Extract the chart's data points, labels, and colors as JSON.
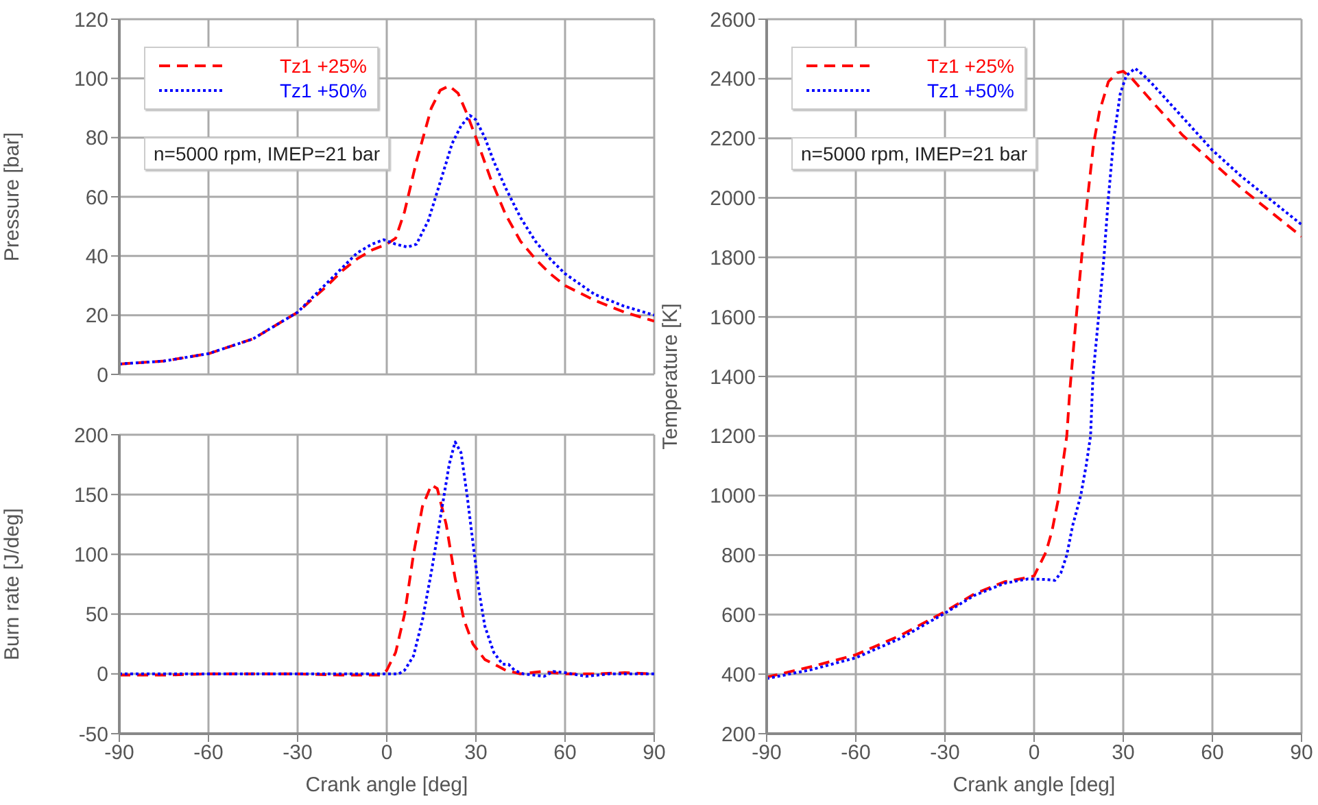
{
  "chart_data": [
    {
      "type": "line",
      "ylabel": "Pressure [bar]",
      "xlim": [
        -90,
        90
      ],
      "xticks": [
        -90,
        -60,
        -30,
        0,
        30,
        60,
        90
      ],
      "ylim": [
        0,
        120
      ],
      "yticks": [
        0,
        20,
        40,
        60,
        80,
        100,
        120
      ],
      "tick_labels": "y",
      "grid": true,
      "legend": "top left",
      "marker": "none",
      "annotations": [
        "n=5000 rpm, IMEP=21 bar"
      ],
      "series": [
        {
          "name": "Tz1 +25%",
          "color": "#ff0000",
          "line_style": "dashed",
          "x": [
            -90,
            -75,
            -60,
            -45,
            -30,
            -20,
            -15,
            -10,
            -5,
            0,
            3,
            6,
            10,
            15,
            18,
            21,
            24,
            27,
            30,
            35,
            40,
            45,
            50,
            55,
            60,
            70,
            80,
            90
          ],
          "values": [
            3.5,
            4.5,
            7,
            12,
            21,
            30,
            35,
            39,
            42,
            44,
            46,
            55,
            72,
            90,
            96,
            97.5,
            95,
            88,
            80,
            66,
            54,
            45,
            39,
            34,
            30,
            25,
            21,
            18
          ]
        },
        {
          "name": "Tz1 +50%",
          "color": "#0000ff",
          "line_style": "dotted",
          "x": [
            -90,
            -75,
            -60,
            -45,
            -30,
            -20,
            -15,
            -10,
            -5,
            -1,
            3,
            7,
            10,
            14,
            18,
            22,
            25,
            28,
            30,
            33,
            36,
            40,
            45,
            50,
            55,
            60,
            70,
            80,
            90
          ],
          "values": [
            3.5,
            4.5,
            7,
            12,
            21,
            31,
            36,
            41,
            44,
            45.5,
            44,
            43,
            44,
            52,
            65,
            78,
            84,
            87.5,
            86,
            80,
            72,
            63,
            53,
            45,
            39,
            34,
            27,
            23,
            20
          ]
        }
      ]
    },
    {
      "type": "line",
      "xlabel": "Crank angle [deg]",
      "ylabel": "Burn rate [J/deg]",
      "xlim": [
        -90,
        90
      ],
      "xticks": [
        -90,
        -60,
        -30,
        0,
        30,
        60,
        90
      ],
      "ylim": [
        -50,
        200
      ],
      "yticks": [
        -50,
        0,
        50,
        100,
        150,
        200
      ],
      "grid": true,
      "marker": "none",
      "series": [
        {
          "color": "#ff0000",
          "line_style": "dashed",
          "x": [
            -90,
            -75,
            -60,
            -45,
            -30,
            -15,
            -2,
            0,
            3,
            6,
            9,
            12,
            15,
            17,
            20,
            23,
            26,
            29,
            33,
            37,
            40,
            45,
            52,
            60,
            70,
            80,
            90
          ],
          "values": [
            -1,
            -1,
            0,
            0,
            0,
            -1,
            -1,
            3,
            18,
            50,
            100,
            140,
            158,
            155,
            125,
            80,
            45,
            25,
            12,
            7,
            3,
            0,
            2,
            0,
            0,
            1,
            0
          ]
        },
        {
          "color": "#0000ff",
          "line_style": "dotted",
          "x": [
            -90,
            -75,
            -60,
            -45,
            -30,
            -15,
            0,
            4,
            6,
            9,
            12,
            15,
            18,
            21,
            23,
            25,
            27,
            29,
            31,
            33,
            36,
            39,
            41,
            43,
            46,
            53,
            56,
            60,
            67,
            75,
            90
          ],
          "values": [
            0,
            0,
            0,
            0,
            0,
            0,
            0,
            0,
            3,
            15,
            45,
            85,
            130,
            175,
            194,
            185,
            150,
            110,
            70,
            40,
            18,
            8,
            8,
            3,
            0,
            -2,
            2,
            1,
            -2,
            0,
            0
          ]
        }
      ]
    },
    {
      "type": "line",
      "xlabel": "Crank angle [deg]",
      "ylabel": "Temperature [K]",
      "xlim": [
        -90,
        90
      ],
      "xticks": [
        -90,
        -60,
        -30,
        0,
        30,
        60,
        90
      ],
      "ylim": [
        200,
        2600
      ],
      "yticks": [
        200,
        400,
        600,
        800,
        1000,
        1200,
        1400,
        1600,
        1800,
        2000,
        2200,
        2400,
        2600
      ],
      "grid": true,
      "legend": "top left",
      "marker": "none",
      "annotations": [
        "n=5000 rpm, IMEP=21 bar"
      ],
      "series": [
        {
          "name": "Tz1 +25%",
          "color": "#ff0000",
          "line_style": "dashed",
          "x": [
            -90,
            -75,
            -60,
            -45,
            -30,
            -20,
            -10,
            -2,
            0,
            2,
            4,
            6,
            8,
            10,
            11,
            12,
            14,
            16,
            18,
            20,
            22,
            25,
            28,
            30,
            33,
            40,
            50,
            60,
            70,
            80,
            90
          ],
          "values": [
            390,
            425,
            465,
            530,
            610,
            670,
            710,
            725,
            730,
            770,
            810,
            880,
            980,
            1130,
            1200,
            1350,
            1580,
            1800,
            2000,
            2180,
            2290,
            2390,
            2420,
            2425,
            2400,
            2320,
            2210,
            2120,
            2030,
            1950,
            1870
          ]
        },
        {
          "name": "Tz1 +50%",
          "color": "#0000ff",
          "line_style": "dotted",
          "x": [
            -90,
            -75,
            -60,
            -45,
            -30,
            -20,
            -10,
            -2,
            4,
            7,
            9,
            11,
            13,
            15.7,
            17.5,
            19,
            19.8,
            21.7,
            23.5,
            25,
            26.8,
            29,
            31,
            34,
            37,
            40,
            50,
            60,
            70,
            80,
            90
          ],
          "values": [
            385,
            415,
            455,
            520,
            605,
            665,
            705,
            720,
            718,
            715,
            740,
            800,
            900,
            1000,
            1100,
            1200,
            1400,
            1600,
            1800,
            2000,
            2200,
            2350,
            2410,
            2435,
            2410,
            2380,
            2270,
            2160,
            2070,
            1990,
            1910
          ]
        }
      ]
    }
  ]
}
